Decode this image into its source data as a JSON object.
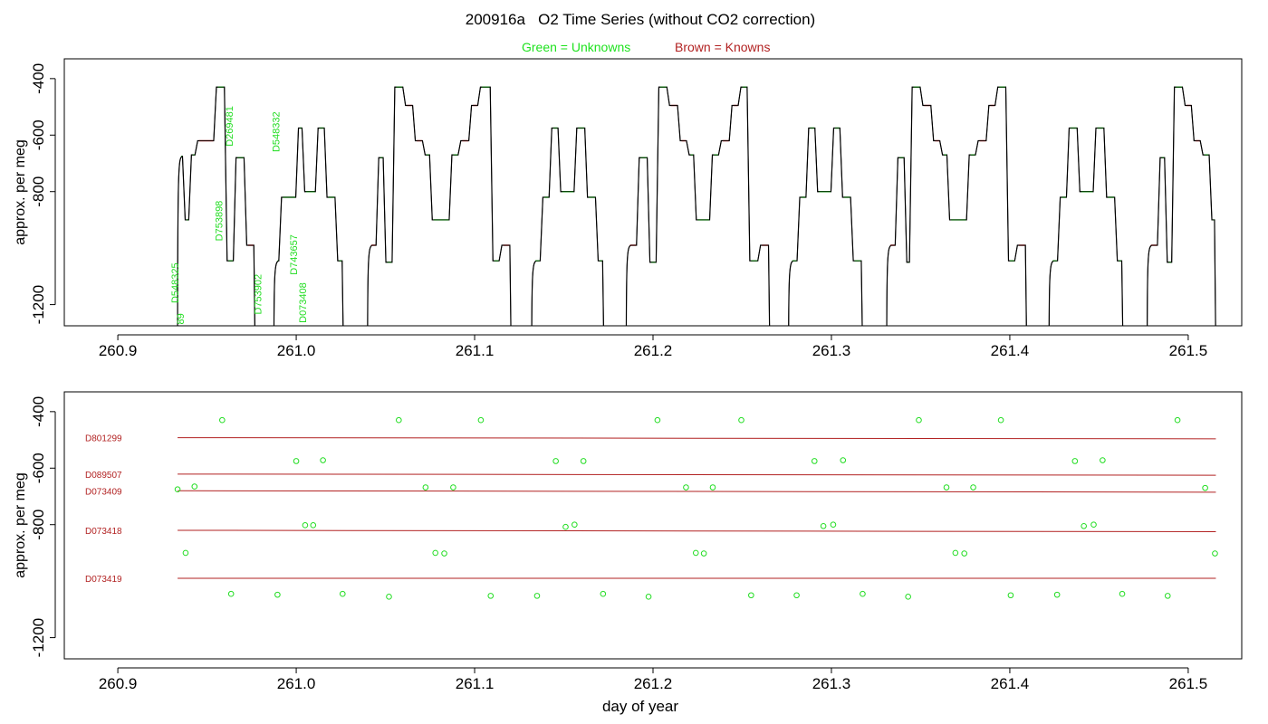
{
  "header": {
    "title": "200916a   O2 Time Series (without CO2 correction)",
    "legend_unknowns": "Green = Unknowns",
    "legend_knowns": "Brown = Knowns"
  },
  "colors": {
    "unknown": "#22dd22",
    "known": "#b22222",
    "trace": "#000000",
    "frame": "#000000"
  },
  "chart_data": [
    {
      "type": "line",
      "title": "200916a   O2 Time Series (without CO2 correction)",
      "xlabel": "",
      "ylabel": "approx. per meg",
      "xlim": [
        260.87,
        261.53
      ],
      "ylim": [
        -1275,
        -330
      ],
      "y_inverted": true,
      "x_ticks": [
        260.9,
        261.0,
        261.1,
        261.2,
        261.3,
        261.4,
        261.5
      ],
      "x_tick_labels": [
        "260.9",
        "261.0",
        "261.1",
        "261.2",
        "261.3",
        "261.4",
        "261.5"
      ],
      "y_ticks": [
        -400,
        -600,
        -800,
        -1200
      ],
      "y_tick_labels": [
        "-400",
        "-600",
        "-800",
        "-1200"
      ],
      "segments": [
        {
          "x0": 260.934,
          "x1": 260.937,
          "y": -675
        },
        {
          "x0": 260.937,
          "x1": 260.9405,
          "y": -900
        },
        {
          "x0": 260.9405,
          "x1": 260.944,
          "y": -670
        },
        {
          "x0": 260.944,
          "x1": 260.9545,
          "y": -620
        },
        {
          "x0": 260.9545,
          "x1": 260.9605,
          "y": -430
        },
        {
          "x0": 260.9605,
          "x1": 260.9655,
          "y": -1045
        },
        {
          "x0": 260.9655,
          "x1": 260.9715,
          "y": -680
        },
        {
          "x0": 260.9715,
          "x1": 260.977,
          "y": -990
        },
        {
          "x0": 260.988,
          "x1": 260.991,
          "y": -1045
        },
        {
          "x0": 260.991,
          "x1": 261.0005,
          "y": -820
        },
        {
          "x0": 261.0005,
          "x1": 261.004,
          "y": -575
        },
        {
          "x0": 261.004,
          "x1": 261.0115,
          "y": -800
        },
        {
          "x0": 261.0115,
          "x1": 261.0165,
          "y": -575
        },
        {
          "x0": 261.0165,
          "x1": 261.0225,
          "y": -820
        },
        {
          "x0": 261.0225,
          "x1": 261.0265,
          "y": -1045
        },
        {
          "x0": 261.0405,
          "x1": 261.0455,
          "y": -990
        },
        {
          "x0": 261.0455,
          "x1": 261.0495,
          "y": -680
        },
        {
          "x0": 261.0495,
          "x1": 261.0545,
          "y": -1050
        },
        {
          "x0": 261.0545,
          "x1": 261.0605,
          "y": -430
        },
        {
          "x0": 261.0605,
          "x1": 261.066,
          "y": -495
        },
        {
          "x0": 261.066,
          "x1": 261.0715,
          "y": -620
        },
        {
          "x0": 261.0715,
          "x1": 261.0755,
          "y": -670
        },
        {
          "x0": 261.0755,
          "x1": 261.0865,
          "y": -900
        },
        {
          "x0": 261.0865,
          "x1": 261.0915,
          "y": -670
        },
        {
          "x0": 261.0915,
          "x1": 261.0975,
          "y": -620
        },
        {
          "x0": 261.0975,
          "x1": 261.1025,
          "y": -495
        },
        {
          "x0": 261.1025,
          "x1": 261.1095,
          "y": -430
        },
        {
          "x0": 261.1095,
          "x1": 261.1145,
          "y": -1045
        },
        {
          "x0": 261.1145,
          "x1": 261.1205,
          "y": -990
        },
        {
          "x0": 261.1325,
          "x1": 261.1375,
          "y": -1045
        },
        {
          "x0": 261.1375,
          "x1": 261.1425,
          "y": -820
        },
        {
          "x0": 261.1425,
          "x1": 261.1475,
          "y": -575
        },
        {
          "x0": 261.1475,
          "x1": 261.1565,
          "y": -800
        },
        {
          "x0": 261.1565,
          "x1": 261.1625,
          "y": -575
        },
        {
          "x0": 261.1625,
          "x1": 261.1685,
          "y": -820
        },
        {
          "x0": 261.1685,
          "x1": 261.1725,
          "y": -1045
        },
        {
          "x0": 261.1855,
          "x1": 261.1915,
          "y": -990
        },
        {
          "x0": 261.1915,
          "x1": 261.1975,
          "y": -680
        },
        {
          "x0": 261.1975,
          "x1": 261.2025,
          "y": -1050
        },
        {
          "x0": 261.2025,
          "x1": 261.2085,
          "y": -430
        },
        {
          "x0": 261.2085,
          "x1": 261.2145,
          "y": -495
        },
        {
          "x0": 261.2145,
          "x1": 261.2195,
          "y": -620
        },
        {
          "x0": 261.2195,
          "x1": 261.2235,
          "y": -670
        },
        {
          "x0": 261.2235,
          "x1": 261.2325,
          "y": -900
        },
        {
          "x0": 261.2325,
          "x1": 261.2375,
          "y": -670
        },
        {
          "x0": 261.2375,
          "x1": 261.2435,
          "y": -620
        },
        {
          "x0": 261.2435,
          "x1": 261.2485,
          "y": -495
        },
        {
          "x0": 261.2485,
          "x1": 261.2535,
          "y": -430
        },
        {
          "x0": 261.2535,
          "x1": 261.2595,
          "y": -1045
        },
        {
          "x0": 261.2595,
          "x1": 261.2655,
          "y": -990
        },
        {
          "x0": 261.2765,
          "x1": 261.2815,
          "y": -1045
        },
        {
          "x0": 261.2815,
          "x1": 261.2865,
          "y": -820
        },
        {
          "x0": 261.2865,
          "x1": 261.2915,
          "y": -575
        },
        {
          "x0": 261.2915,
          "x1": 261.3005,
          "y": -800
        },
        {
          "x0": 261.3005,
          "x1": 261.3055,
          "y": -575
        },
        {
          "x0": 261.3055,
          "x1": 261.3115,
          "y": -820
        },
        {
          "x0": 261.3115,
          "x1": 261.3175,
          "y": -1045
        },
        {
          "x0": 261.3315,
          "x1": 261.3365,
          "y": -990
        },
        {
          "x0": 261.3365,
          "x1": 261.3415,
          "y": -680
        },
        {
          "x0": 261.3415,
          "x1": 261.3445,
          "y": -1050
        },
        {
          "x0": 261.3445,
          "x1": 261.3505,
          "y": -430
        },
        {
          "x0": 261.3505,
          "x1": 261.3565,
          "y": -495
        },
        {
          "x0": 261.3565,
          "x1": 261.3615,
          "y": -620
        },
        {
          "x0": 261.3615,
          "x1": 261.3655,
          "y": -670
        },
        {
          "x0": 261.3655,
          "x1": 261.3765,
          "y": -900
        },
        {
          "x0": 261.3765,
          "x1": 261.3815,
          "y": -670
        },
        {
          "x0": 261.3815,
          "x1": 261.3875,
          "y": -620
        },
        {
          "x0": 261.3875,
          "x1": 261.3925,
          "y": -495
        },
        {
          "x0": 261.3925,
          "x1": 261.3985,
          "y": -430
        },
        {
          "x0": 261.3985,
          "x1": 261.4035,
          "y": -1045
        },
        {
          "x0": 261.4035,
          "x1": 261.4095,
          "y": -990
        },
        {
          "x0": 261.4225,
          "x1": 261.4275,
          "y": -1045
        },
        {
          "x0": 261.4275,
          "x1": 261.4325,
          "y": -820
        },
        {
          "x0": 261.4325,
          "x1": 261.4385,
          "y": -575
        },
        {
          "x0": 261.4385,
          "x1": 261.4475,
          "y": -800
        },
        {
          "x0": 261.4475,
          "x1": 261.4535,
          "y": -575
        },
        {
          "x0": 261.4535,
          "x1": 261.4595,
          "y": -820
        },
        {
          "x0": 261.4595,
          "x1": 261.4635,
          "y": -1045
        },
        {
          "x0": 261.4775,
          "x1": 261.4835,
          "y": -990
        },
        {
          "x0": 261.4835,
          "x1": 261.4875,
          "y": -680
        },
        {
          "x0": 261.4875,
          "x1": 261.4915,
          "y": -1050
        },
        {
          "x0": 261.4915,
          "x1": 261.4975,
          "y": -430
        },
        {
          "x0": 261.4975,
          "x1": 261.5025,
          "y": -495
        },
        {
          "x0": 261.5025,
          "x1": 261.5075,
          "y": -620
        },
        {
          "x0": 261.5075,
          "x1": 261.5125,
          "y": -670
        },
        {
          "x0": 261.5125,
          "x1": 261.5155,
          "y": -900
        }
      ],
      "dips": [
        260.9285,
        260.9775,
        261.0335,
        261.1235,
        261.1305,
        261.1725,
        261.1805,
        261.2665,
        261.2745,
        261.3215,
        261.3295,
        261.4125,
        261.4205,
        261.4645,
        261.4725
      ],
      "sample_labels": [
        {
          "text": "D548325",
          "x": 260.934,
          "y": -1195
        },
        {
          "text": "89",
          "x": 260.937,
          "y": -1270
        },
        {
          "text": "D269481",
          "x": 260.9645,
          "y": -640
        },
        {
          "text": "D753898",
          "x": 260.9585,
          "y": -975
        },
        {
          "text": "D753902",
          "x": 260.9805,
          "y": -1235
        },
        {
          "text": "D548332",
          "x": 260.9905,
          "y": -660
        },
        {
          "text": "D743657",
          "x": 261.0005,
          "y": -1095
        },
        {
          "text": "D073408",
          "x": 261.0055,
          "y": -1265
        }
      ]
    },
    {
      "type": "scatter",
      "xlabel": "day of year",
      "ylabel": "approx. per meg",
      "xlim": [
        260.87,
        261.53
      ],
      "ylim": [
        -1275,
        -330
      ],
      "y_inverted": true,
      "x_ticks": [
        260.9,
        261.0,
        261.1,
        261.2,
        261.3,
        261.4,
        261.5
      ],
      "x_tick_labels": [
        "260.9",
        "261.0",
        "261.1",
        "261.2",
        "261.3",
        "261.4",
        "261.5"
      ],
      "y_ticks": [
        -400,
        -600,
        -800,
        -1200
      ],
      "y_tick_labels": [
        "-400",
        "-600",
        "-800",
        "-1200"
      ],
      "reference_lines": [
        {
          "name": "D801299",
          "x0": 260.9335,
          "x1": 261.5155,
          "y0": -492,
          "y1": -496
        },
        {
          "name": "D089507",
          "x0": 260.9335,
          "x1": 261.5155,
          "y0": -621,
          "y1": -625
        },
        {
          "name": "D073409",
          "x0": 260.9335,
          "x1": 261.5155,
          "y0": -680,
          "y1": -685
        },
        {
          "name": "D073418",
          "x0": 260.9335,
          "x1": 261.5155,
          "y0": -820,
          "y1": -825
        },
        {
          "name": "D073419",
          "x0": 260.9335,
          "x1": 261.5155,
          "y0": -990,
          "y1": -990
        }
      ],
      "points": [
        {
          "x": 260.9335,
          "y": -675
        },
        {
          "x": 260.938,
          "y": -900
        },
        {
          "x": 260.943,
          "y": -665
        },
        {
          "x": 260.9585,
          "y": -430
        },
        {
          "x": 260.9635,
          "y": -1045
        },
        {
          "x": 260.9895,
          "y": -1048
        },
        {
          "x": 261.0,
          "y": -575
        },
        {
          "x": 261.005,
          "y": -802
        },
        {
          "x": 261.0095,
          "y": -802
        },
        {
          "x": 261.015,
          "y": -572
        },
        {
          "x": 261.026,
          "y": -1045
        },
        {
          "x": 261.052,
          "y": -1055
        },
        {
          "x": 261.0575,
          "y": -430
        },
        {
          "x": 261.0725,
          "y": -668
        },
        {
          "x": 261.078,
          "y": -900
        },
        {
          "x": 261.083,
          "y": -902
        },
        {
          "x": 261.088,
          "y": -668
        },
        {
          "x": 261.1035,
          "y": -430
        },
        {
          "x": 261.109,
          "y": -1052
        },
        {
          "x": 261.135,
          "y": -1052
        },
        {
          "x": 261.1455,
          "y": -575
        },
        {
          "x": 261.151,
          "y": -808
        },
        {
          "x": 261.156,
          "y": -800
        },
        {
          "x": 261.161,
          "y": -575
        },
        {
          "x": 261.172,
          "y": -1045
        },
        {
          "x": 261.1975,
          "y": -1055
        },
        {
          "x": 261.2025,
          "y": -430
        },
        {
          "x": 261.2185,
          "y": -668
        },
        {
          "x": 261.224,
          "y": -900
        },
        {
          "x": 261.2285,
          "y": -902
        },
        {
          "x": 261.2335,
          "y": -668
        },
        {
          "x": 261.2495,
          "y": -430
        },
        {
          "x": 261.255,
          "y": -1050
        },
        {
          "x": 261.2805,
          "y": -1050
        },
        {
          "x": 261.2905,
          "y": -575
        },
        {
          "x": 261.2955,
          "y": -805
        },
        {
          "x": 261.301,
          "y": -800
        },
        {
          "x": 261.3065,
          "y": -572
        },
        {
          "x": 261.3175,
          "y": -1045
        },
        {
          "x": 261.343,
          "y": -1055
        },
        {
          "x": 261.349,
          "y": -430
        },
        {
          "x": 261.3645,
          "y": -668
        },
        {
          "x": 261.3695,
          "y": -900
        },
        {
          "x": 261.3745,
          "y": -902
        },
        {
          "x": 261.3795,
          "y": -668
        },
        {
          "x": 261.395,
          "y": -430
        },
        {
          "x": 261.4005,
          "y": -1050
        },
        {
          "x": 261.4265,
          "y": -1048
        },
        {
          "x": 261.4365,
          "y": -575
        },
        {
          "x": 261.4415,
          "y": -805
        },
        {
          "x": 261.447,
          "y": -800
        },
        {
          "x": 261.452,
          "y": -572
        },
        {
          "x": 261.463,
          "y": -1045
        },
        {
          "x": 261.4885,
          "y": -1052
        },
        {
          "x": 261.494,
          "y": -430
        },
        {
          "x": 261.5095,
          "y": -670
        },
        {
          "x": 261.515,
          "y": -902
        }
      ]
    }
  ]
}
